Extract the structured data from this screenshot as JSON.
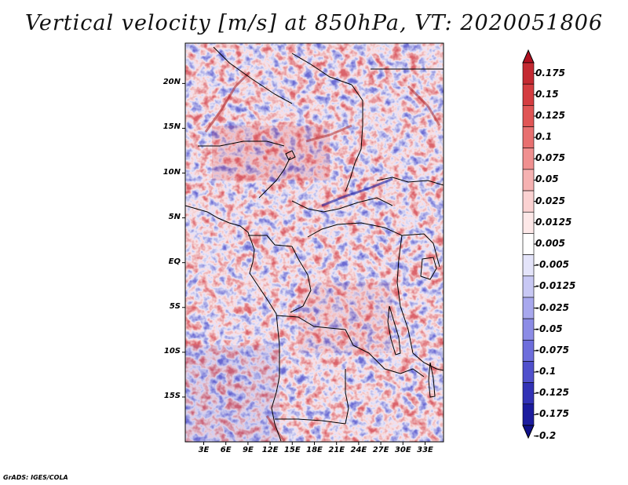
{
  "title": "Vertical velocity [m/s] at 850hPa, VT: 2020051806",
  "credit": "GrADS: IGES/COLA",
  "map": {
    "variable": "vertical velocity",
    "units": "m/s",
    "level": "850hPa",
    "valid_time": "2020051806",
    "lat_labels": [
      "20N",
      "15N",
      "10N",
      "5N",
      "EQ",
      "5S",
      "10S",
      "15S"
    ],
    "lat_values": [
      20,
      15,
      10,
      5,
      0,
      -5,
      -10,
      -15
    ],
    "lon_labels": [
      "3E",
      "6E",
      "9E",
      "12E",
      "15E",
      "18E",
      "21E",
      "24E",
      "27E",
      "30E",
      "33E"
    ],
    "lon_values": [
      3,
      6,
      9,
      12,
      15,
      18,
      21,
      24,
      27,
      30,
      33
    ],
    "lat_range": [
      -20,
      24.5
    ],
    "lon_range": [
      0.5,
      35.5
    ]
  },
  "colorbar": {
    "labels": [
      "0.175",
      "0.15",
      "0.125",
      "0.1",
      "0.075",
      "0.05",
      "0.025",
      "0.0125",
      "0.005",
      "-0.005",
      "-0.0125",
      "-0.025",
      "-0.05",
      "-0.075",
      "-0.1",
      "-0.125",
      "-0.175",
      "-0.2"
    ],
    "colors": [
      "#b01020",
      "#c42a32",
      "#d43c40",
      "#e05555",
      "#e87070",
      "#f09090",
      "#f6b2b2",
      "#fbd2d2",
      "#fde8e8",
      "#ffffff",
      "#e4e4fa",
      "#c8c8f4",
      "#a8a8ee",
      "#8c8ce6",
      "#6e6edc",
      "#5050cc",
      "#3232b6",
      "#1c1c9e",
      "#10108a"
    ]
  },
  "colors": {
    "positive": "#d23c46",
    "negative": "#4646c8",
    "neutral": "#ffffff",
    "border": "#000000"
  }
}
